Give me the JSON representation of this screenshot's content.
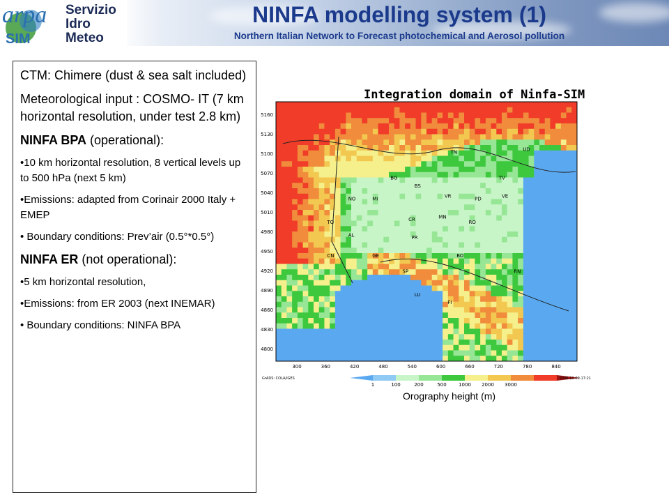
{
  "header": {
    "logo_text": "arpa",
    "logo_sub": "SIM",
    "logo_lines": [
      "Servizio",
      "Idro",
      "Meteo"
    ],
    "title": "NINFA modelling system (1)",
    "subtitle": "Northern  Italian Network to Forecast  photochemical and Aerosol pollution"
  },
  "textbox": {
    "p1": "CTM: Chimere (dust & sea salt included)",
    "p2": "Meteorological input : COSMO- IT (7 km horizontal resolution, under test  2.8 km)",
    "p3_bold": "NINFA BPA",
    "p3_rest": " (operational):",
    "b1": "•10 km horizontal resolution, 8 vertical levels up to 500 hPa (next 5 km)",
    "b2": "•Emissions: adapted from Corinair 2000 Italy + EMEP",
    "b3": "• Boundary conditions: Prev’air (0.5°*0.5°)",
    "p4_bold": "NINFA ER",
    "p4_rest": " (not operational):",
    "b4": "•5 km horizontal resolution,",
    "b5": "•Emissions: from ER 2003 (next INEMAR)",
    "b6": "• Boundary conditions: NINFA BPA"
  },
  "map": {
    "title": "Integration domain of Ninfa-SIM",
    "caption": "Orography height (m)",
    "y_ticks": [
      "5160",
      "5130",
      "5100",
      "5070",
      "5040",
      "5010",
      "4980",
      "4950",
      "4920",
      "4890",
      "4860",
      "4830",
      "4800"
    ],
    "x_ticks": [
      "300",
      "360",
      "420",
      "480",
      "540",
      "600",
      "660",
      "720",
      "780",
      "840"
    ],
    "legend_labels": [
      "1",
      "100",
      "200",
      "500",
      "1000",
      "2000",
      "3000"
    ],
    "legend_colors": [
      "#5aa9f0",
      "#8fcaf5",
      "#c8f5c8",
      "#96e696",
      "#3ec83e",
      "#f5f08c",
      "#f2c850",
      "#f08c3c",
      "#f03c28",
      "#a01414"
    ],
    "footer_left": "GrADS: COLA/IGES",
    "footer_right": "2006-10-09-17:21",
    "places": [
      {
        "label": "TN"
      },
      {
        "label": "UD"
      },
      {
        "label": "TV"
      },
      {
        "label": "BG"
      },
      {
        "label": "BS"
      },
      {
        "label": "VR"
      },
      {
        "label": "PD"
      },
      {
        "label": "VE"
      },
      {
        "label": "NO"
      },
      {
        "label": "MI"
      },
      {
        "label": "CR"
      },
      {
        "label": "MN"
      },
      {
        "label": "RO"
      },
      {
        "label": "TO"
      },
      {
        "label": "AL"
      },
      {
        "label": "PR"
      },
      {
        "label": "BO"
      },
      {
        "label": "CN"
      },
      {
        "label": "GE"
      },
      {
        "label": "SP"
      },
      {
        "label": "LU"
      },
      {
        "label": "FI"
      },
      {
        "label": "RN"
      }
    ],
    "colors": {
      "sea": "#5aa9f0",
      "plain1": "#c8f5c8",
      "plain2": "#96e696",
      "hill": "#3ec83e",
      "mid": "#f5f08c",
      "high1": "#f2c850",
      "high2": "#f08c3c",
      "high3": "#f03c28",
      "peak": "#c81e1e"
    }
  }
}
